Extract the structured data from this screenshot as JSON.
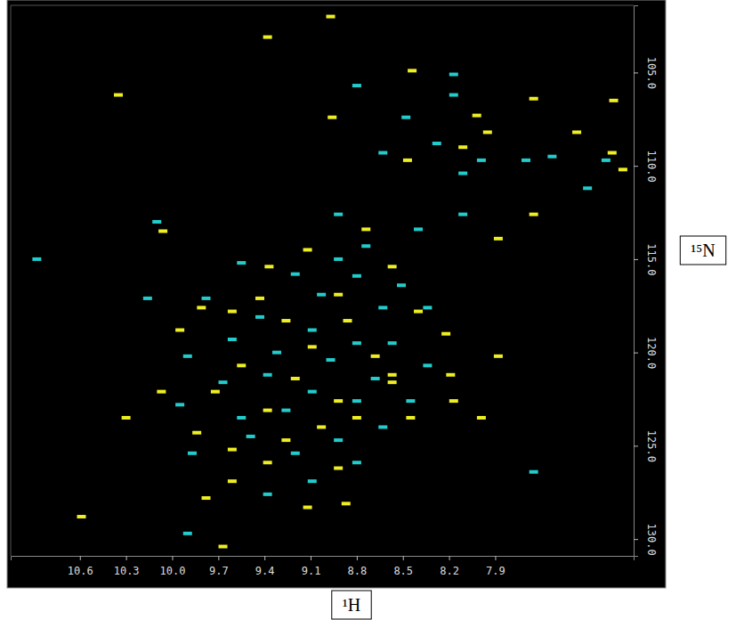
{
  "chart_data": {
    "type": "scatter",
    "x_label": "¹H",
    "y_label": "¹⁵N",
    "xlim": [
      11.05,
      7.0
    ],
    "ylim": [
      101.4,
      130.9
    ],
    "xticks": [
      10.6,
      10.3,
      {
        "value": 10,
        "label": "10.0"
      },
      9.7,
      9.4,
      9.1,
      8.8,
      8.5,
      8.2,
      7.9
    ],
    "yticks": [
      {
        "value": 105,
        "label": "105.0"
      },
      {
        "value": 110,
        "label": "110.0"
      },
      {
        "value": 115,
        "label": "115.0"
      },
      {
        "value": 120,
        "label": "120.0"
      },
      {
        "value": 125,
        "label": "125.0"
      },
      {
        "value": 130,
        "label": "130.0"
      }
    ],
    "grid": false,
    "series": [
      {
        "color": "#22cccc",
        "marker": "dash",
        "x": [
          8.17,
          8.8,
          8.48,
          8.17,
          8.28,
          8.63,
          7.99,
          7.7,
          7.53,
          7.3,
          7.18,
          8.11,
          10.1,
          8.92,
          8.11,
          8.4,
          8.74,
          8.92,
          9.55,
          9.2,
          8.8,
          8.51,
          9.03,
          9.78,
          9.43,
          8.63,
          8.34,
          9.09,
          9.61,
          8.8,
          8.57,
          9.32,
          8.97,
          9.9,
          8.34,
          9.38,
          8.68,
          9.67,
          9.09,
          9.95,
          8.45,
          9.26,
          8.8,
          9.55,
          8.63,
          8.92,
          9.2,
          9.49,
          9.87,
          8.8,
          9.09,
          9.38,
          10.16,
          10.88,
          9.9,
          7.65
        ],
        "values": [
          105.1,
          105.7,
          107.4,
          106.2,
          108.8,
          109.3,
          109.7,
          109.7,
          109.5,
          111.2,
          109.7,
          110.4,
          113.0,
          112.6,
          112.6,
          113.4,
          114.3,
          115.0,
          115.2,
          115.8,
          115.9,
          116.4,
          116.9,
          117.1,
          118.1,
          117.6,
          117.6,
          118.8,
          119.3,
          119.5,
          119.5,
          120.0,
          120.4,
          120.2,
          120.7,
          121.2,
          121.4,
          121.6,
          122.1,
          122.8,
          122.6,
          123.1,
          122.6,
          123.5,
          124.0,
          124.7,
          125.4,
          124.5,
          125.4,
          125.9,
          126.9,
          127.6,
          117.1,
          115.0,
          129.7,
          126.4
        ]
      },
      {
        "color": "#eeee22",
        "marker": "dash",
        "x": [
          8.97,
          9.38,
          10.35,
          8.44,
          8.96,
          8.02,
          7.65,
          7.13,
          8.11,
          7.95,
          7.37,
          7.14,
          7.07,
          8.47,
          7.65,
          8.74,
          10.06,
          9.12,
          9.37,
          8.57,
          7.88,
          8.92,
          9.43,
          9.81,
          9.61,
          9.95,
          9.26,
          8.86,
          8.4,
          8.22,
          9.09,
          8.68,
          9.55,
          9.2,
          8.57,
          9.72,
          8.92,
          10.07,
          9.38,
          8.8,
          8.57,
          8.19,
          9.03,
          9.26,
          8.45,
          10.3,
          9.84,
          9.61,
          9.38,
          8.92,
          9.78,
          9.61,
          9.12,
          9.67,
          8.87,
          10.59,
          7.99,
          8.17,
          7.88
        ],
        "values": [
          102.0,
          103.1,
          106.2,
          104.9,
          107.4,
          107.3,
          106.4,
          106.5,
          109.0,
          108.2,
          108.2,
          109.3,
          110.2,
          109.7,
          112.6,
          113.4,
          113.5,
          114.5,
          115.4,
          115.4,
          113.9,
          116.9,
          117.1,
          117.6,
          117.8,
          118.8,
          118.3,
          118.3,
          117.8,
          119.0,
          119.7,
          120.2,
          120.7,
          121.4,
          121.2,
          122.1,
          122.6,
          122.1,
          123.1,
          123.5,
          121.6,
          121.2,
          124.0,
          124.7,
          123.5,
          123.5,
          124.3,
          125.2,
          125.9,
          126.2,
          127.8,
          126.9,
          128.3,
          130.4,
          128.1,
          128.8,
          123.5,
          122.6,
          120.2
        ]
      }
    ]
  }
}
